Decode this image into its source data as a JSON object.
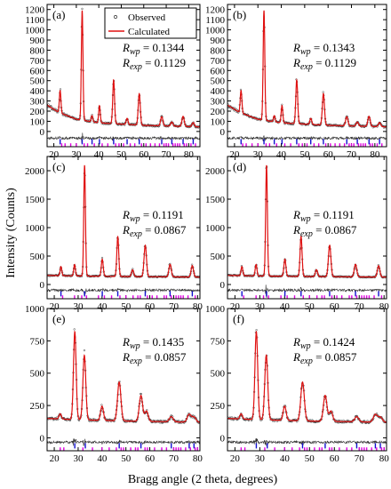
{
  "figure": {
    "ylabel": "Intensity (Counts)",
    "xlabel": "Bragg angle (2 theta, degrees)",
    "legend": {
      "observed": "Observed",
      "calculated": "Calculated"
    },
    "colors": {
      "calculated": "#e01010",
      "observed": "#333333",
      "diff": "#2a2a2a",
      "tick_blue": "#1010d0",
      "tick_magenta": "#e000e0"
    }
  },
  "chart_data": [
    {
      "type": "line",
      "panel": "(a)",
      "xlim": [
        17,
        85
      ],
      "ylim": [
        -150,
        1250
      ],
      "xticks": [
        "20",
        "30",
        "40",
        "50",
        "60",
        "70",
        "80"
      ],
      "yticks": [
        "0",
        "100",
        "200",
        "300",
        "400",
        "500",
        "600",
        "700",
        "800",
        "900",
        "1000",
        "1100",
        "1200"
      ],
      "rwp_label": "R",
      "rwp_sub": "wp",
      "rwp_value": " = 0.1344",
      "rexp_label": "R",
      "rexp_sub": "exp",
      "rexp_value": " = 0.1129",
      "background": [
        [
          17,
          260
        ],
        [
          22,
          190
        ],
        [
          30,
          120
        ],
        [
          40,
          85
        ],
        [
          60,
          60
        ],
        [
          85,
          45
        ]
      ],
      "peaks": [
        [
          22.8,
          220,
          0.35
        ],
        [
          32.6,
          1080,
          0.35
        ],
        [
          37.0,
          60,
          0.35
        ],
        [
          40.3,
          170,
          0.35
        ],
        [
          46.6,
          430,
          0.4
        ],
        [
          52.6,
          60,
          0.4
        ],
        [
          58.0,
          310,
          0.45
        ],
        [
          68.0,
          90,
          0.5
        ],
        [
          72.5,
          40,
          0.5
        ],
        [
          77.5,
          100,
          0.5
        ],
        [
          82.0,
          40,
          0.5
        ]
      ],
      "tick_rows": [
        {
          "color": "blue",
          "x": [
            22.8,
            32.6,
            37.0,
            40.3,
            46.6,
            52.6,
            58.0,
            68.0,
            72.5,
            77.5,
            82.0
          ]
        },
        {
          "color": "magenta",
          "x": [
            23.5,
            25,
            27.5,
            30,
            33.5,
            35,
            38,
            41.5,
            44,
            47.5,
            49,
            51,
            54,
            56,
            59,
            61,
            63,
            65,
            67,
            69,
            70,
            71,
            73,
            74,
            75,
            76,
            78,
            79,
            81,
            83
          ]
        }
      ]
    },
    {
      "type": "line",
      "panel": "(b)",
      "xlim": [
        17,
        85
      ],
      "ylim": [
        -150,
        1250
      ],
      "xticks": [
        "20",
        "30",
        "40",
        "50",
        "60",
        "70",
        "80"
      ],
      "yticks": [
        "0",
        "100",
        "200",
        "300",
        "400",
        "500",
        "600",
        "700",
        "800",
        "900",
        "1000",
        "1100",
        "1200"
      ],
      "rwp_label": "R",
      "rwp_sub": "wp",
      "rwp_value": " = 0.1343",
      "rexp_label": "R",
      "rexp_sub": "exp",
      "rexp_value": " = 0.1129",
      "background": [
        [
          17,
          260
        ],
        [
          22,
          190
        ],
        [
          30,
          120
        ],
        [
          40,
          85
        ],
        [
          60,
          60
        ],
        [
          85,
          45
        ]
      ],
      "peaks": [
        [
          22.8,
          220,
          0.35
        ],
        [
          32.6,
          1080,
          0.35
        ],
        [
          37.0,
          60,
          0.35
        ],
        [
          40.3,
          170,
          0.35
        ],
        [
          46.6,
          430,
          0.4
        ],
        [
          52.6,
          60,
          0.4
        ],
        [
          58.0,
          310,
          0.45
        ],
        [
          68.0,
          90,
          0.5
        ],
        [
          72.5,
          40,
          0.5
        ],
        [
          77.5,
          100,
          0.5
        ],
        [
          82.0,
          40,
          0.5
        ]
      ],
      "tick_rows": [
        {
          "color": "blue",
          "x": [
            22.8,
            32.6,
            37.0,
            40.3,
            46.6,
            52.6,
            58.0,
            68.0,
            72.5,
            77.5,
            82.0
          ]
        },
        {
          "color": "magenta",
          "x": [
            23.5,
            25,
            27.5,
            30,
            33.5,
            35,
            38,
            41.5,
            44,
            47.5,
            49,
            51,
            54,
            56,
            59,
            61,
            63,
            65,
            67,
            69,
            70,
            71,
            73,
            74,
            75,
            76,
            78,
            79,
            81,
            83
          ]
        }
      ]
    },
    {
      "type": "line",
      "panel": "(c)",
      "xlim": [
        17,
        81
      ],
      "ylim": [
        -250,
        2250
      ],
      "xticks": [
        "20",
        "30",
        "40",
        "50",
        "60",
        "70",
        "80"
      ],
      "yticks": [
        "0",
        "500",
        "1000",
        "1500",
        "2000"
      ],
      "rwp_label": "R",
      "rwp_sub": "wp",
      "rwp_value": " = 0.1191",
      "rexp_label": "R",
      "rexp_sub": "exp",
      "rexp_value": " = 0.0867",
      "background": [
        [
          17,
          160
        ],
        [
          30,
          150
        ],
        [
          50,
          140
        ],
        [
          81,
          130
        ]
      ],
      "peaks": [
        [
          22.8,
          160,
          0.35
        ],
        [
          28.5,
          200,
          0.35
        ],
        [
          32.7,
          1950,
          0.35
        ],
        [
          40.1,
          300,
          0.4
        ],
        [
          46.6,
          700,
          0.4
        ],
        [
          52.8,
          120,
          0.45
        ],
        [
          58.1,
          550,
          0.5
        ],
        [
          68.5,
          220,
          0.5
        ],
        [
          77.8,
          200,
          0.5
        ]
      ],
      "tick_rows": [
        {
          "color": "blue",
          "x": [
            22.8,
            32.7,
            40.1,
            46.6,
            58.1,
            68.5,
            77.8
          ]
        },
        {
          "color": "magenta",
          "x": [
            23.5,
            28.5,
            31.5,
            33.5,
            38.5,
            41,
            44,
            47.5,
            50,
            53,
            55,
            56,
            59,
            61,
            63,
            66,
            67,
            69,
            71,
            72,
            73,
            74,
            76,
            79
          ]
        }
      ]
    },
    {
      "type": "line",
      "panel": "(d)",
      "xlim": [
        17,
        81
      ],
      "ylim": [
        -250,
        2250
      ],
      "xticks": [
        "20",
        "30",
        "40",
        "50",
        "60",
        "70",
        "80"
      ],
      "yticks": [
        "0",
        "500",
        "1000",
        "1500",
        "2000"
      ],
      "rwp_label": "R",
      "rwp_sub": "wp",
      "rwp_value": " = 0.1191",
      "rexp_label": "R",
      "rexp_sub": "exp",
      "rexp_value": " = 0.0867",
      "background": [
        [
          17,
          160
        ],
        [
          30,
          150
        ],
        [
          50,
          140
        ],
        [
          81,
          130
        ]
      ],
      "peaks": [
        [
          22.8,
          160,
          0.35
        ],
        [
          28.5,
          200,
          0.35
        ],
        [
          32.7,
          1950,
          0.35
        ],
        [
          40.1,
          300,
          0.4
        ],
        [
          46.6,
          700,
          0.4
        ],
        [
          52.8,
          120,
          0.45
        ],
        [
          58.1,
          550,
          0.5
        ],
        [
          68.5,
          220,
          0.5
        ],
        [
          77.8,
          200,
          0.5
        ]
      ],
      "tick_rows": [
        {
          "color": "blue",
          "x": [
            22.8,
            32.7,
            40.1,
            46.6,
            58.1,
            68.5,
            77.8
          ]
        },
        {
          "color": "magenta",
          "x": [
            23.5,
            28.5,
            31.5,
            33.5,
            38.5,
            41,
            44,
            47.5,
            50,
            53,
            55,
            56,
            59,
            61,
            63,
            66,
            67,
            69,
            71,
            72,
            73,
            74,
            76,
            79
          ]
        }
      ]
    },
    {
      "type": "line",
      "panel": "(e)",
      "xlim": [
        17,
        81
      ],
      "ylim": [
        -100,
        1000
      ],
      "xticks": [
        "20",
        "30",
        "40",
        "50",
        "60",
        "70",
        "80"
      ],
      "yticks": [
        "0",
        "250",
        "500",
        "750",
        "1000"
      ],
      "rwp_label": "R",
      "rwp_sub": "wp",
      "rwp_value": " = 0.1435",
      "rexp_label": "R",
      "rexp_sub": "exp",
      "rexp_value": " = 0.0857",
      "background": [
        [
          17,
          150
        ],
        [
          30,
          140
        ],
        [
          50,
          130
        ],
        [
          81,
          120
        ]
      ],
      "peaks": [
        [
          22.5,
          40,
          0.5
        ],
        [
          28.6,
          680,
          0.55
        ],
        [
          32.6,
          500,
          0.6
        ],
        [
          40.0,
          110,
          0.6
        ],
        [
          47.2,
          300,
          0.7
        ],
        [
          56.3,
          200,
          0.7
        ],
        [
          58.6,
          80,
          0.7
        ],
        [
          69.0,
          40,
          0.8
        ],
        [
          76.5,
          60,
          0.8
        ],
        [
          78.5,
          40,
          0.8
        ]
      ],
      "tick_rows": [
        {
          "color": "blue",
          "x": [
            28.6,
            33.0,
            47.2,
            56.3,
            69.0,
            76.5,
            78.5
          ]
        },
        {
          "color": "magenta",
          "x": [
            22.5,
            24,
            32,
            36,
            40,
            43,
            46,
            48,
            49,
            52,
            54,
            55,
            58,
            59,
            62,
            65,
            67,
            70,
            71,
            72,
            73,
            75,
            77,
            79,
            80
          ]
        }
      ]
    },
    {
      "type": "line",
      "panel": "(f)",
      "xlim": [
        17,
        81
      ],
      "ylim": [
        -100,
        1000
      ],
      "xticks": [
        "20",
        "30",
        "40",
        "50",
        "60",
        "70",
        "80"
      ],
      "yticks": [
        "0",
        "250",
        "500",
        "750",
        "1000"
      ],
      "rwp_label": "R",
      "rwp_sub": "wp",
      "rwp_value": " = 0.1424",
      "rexp_label": "R",
      "rexp_sub": "exp",
      "rexp_value": " = 0.0857",
      "background": [
        [
          17,
          150
        ],
        [
          30,
          140
        ],
        [
          50,
          130
        ],
        [
          81,
          120
        ]
      ],
      "peaks": [
        [
          22.5,
          40,
          0.5
        ],
        [
          28.6,
          680,
          0.55
        ],
        [
          32.6,
          500,
          0.6
        ],
        [
          40.0,
          110,
          0.6
        ],
        [
          47.2,
          300,
          0.7
        ],
        [
          56.3,
          200,
          0.7
        ],
        [
          58.6,
          80,
          0.7
        ],
        [
          69.0,
          40,
          0.8
        ],
        [
          76.5,
          60,
          0.8
        ],
        [
          78.5,
          40,
          0.8
        ]
      ],
      "tick_rows": [
        {
          "color": "blue",
          "x": [
            28.6,
            33.0,
            47.2,
            56.3,
            69.0,
            76.5,
            78.5
          ]
        },
        {
          "color": "magenta",
          "x": [
            22.5,
            24,
            32,
            36,
            40,
            43,
            46,
            48,
            49,
            52,
            54,
            55,
            58,
            59,
            62,
            65,
            67,
            70,
            71,
            72,
            73,
            75,
            77,
            79,
            80
          ]
        }
      ]
    }
  ]
}
